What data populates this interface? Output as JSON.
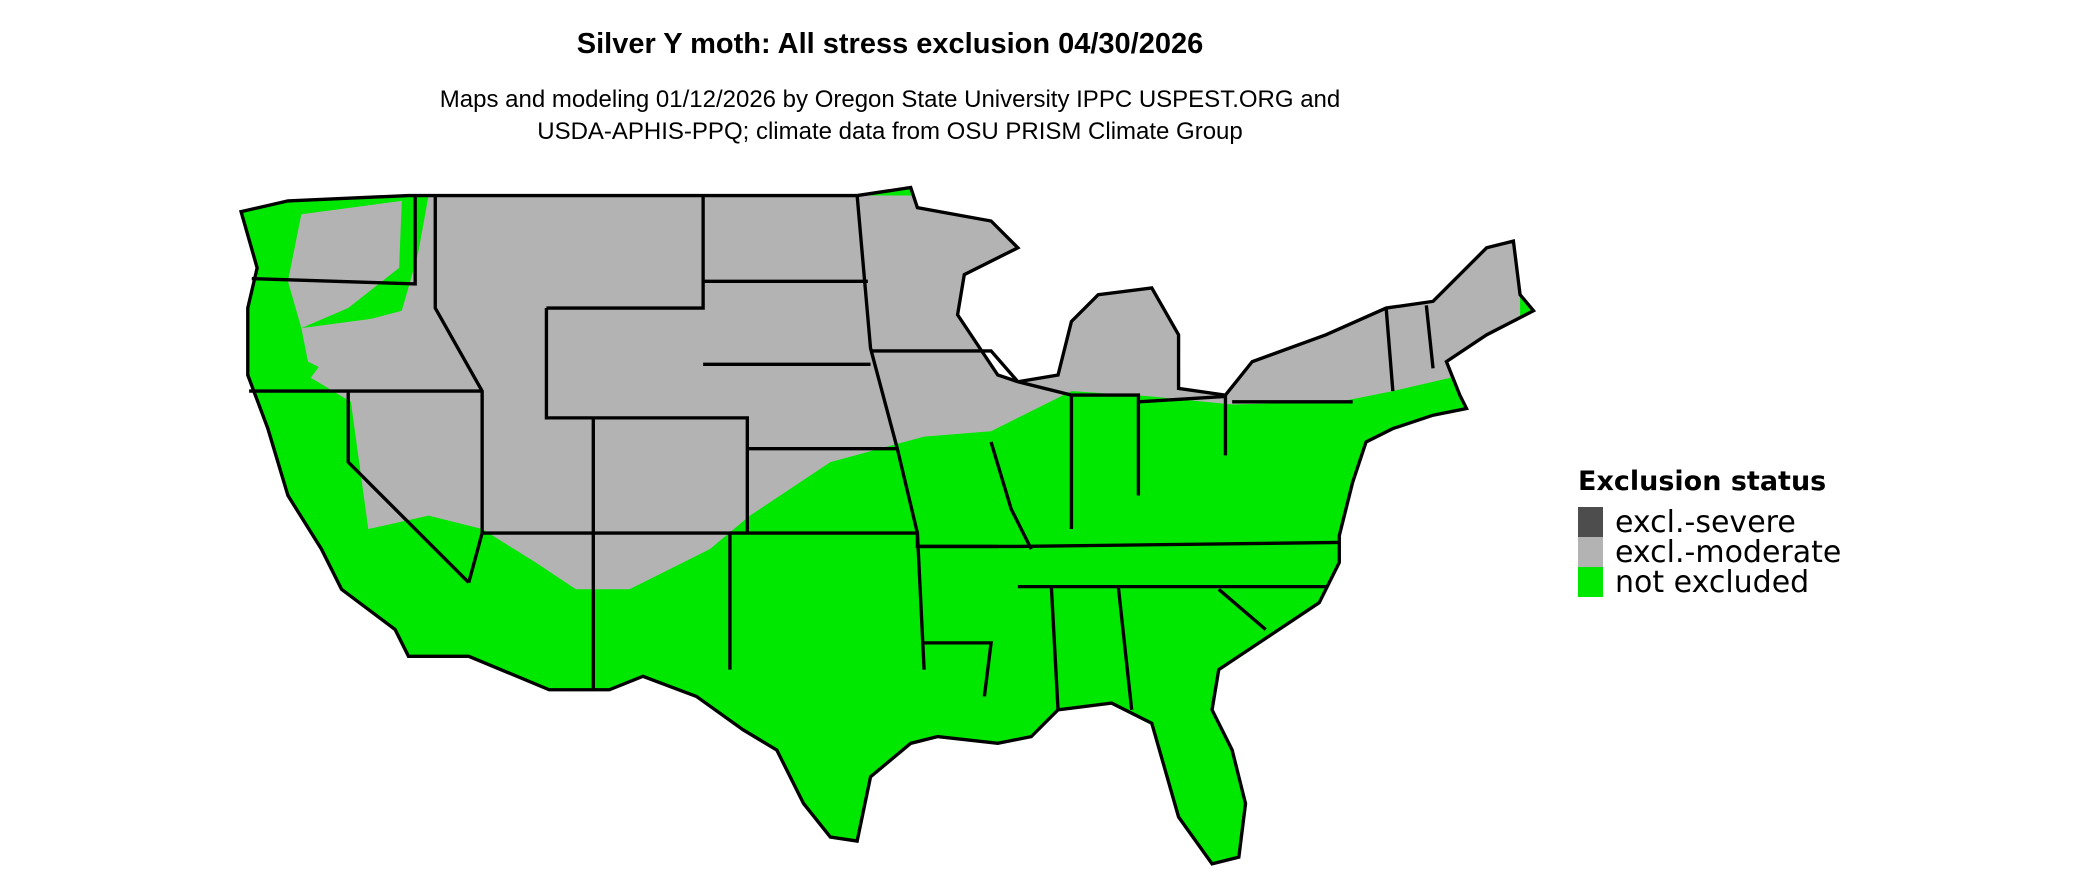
{
  "title": "Silver Y moth: All stress exclusion 04/30/2026",
  "subtitle_line1": "Maps and modeling 01/12/2026 by Oregon State University IPPC USPEST.ORG and",
  "subtitle_line2": "USDA-APHIS-PPQ; climate data from OSU PRISM Climate Group",
  "legend": {
    "title": "Exclusion status",
    "items": [
      {
        "label": "excl.-severe",
        "color": "#4d4d4d"
      },
      {
        "label": "excl.-moderate",
        "color": "#b3b3b3"
      },
      {
        "label": "not excluded",
        "color": "#00e800"
      }
    ]
  },
  "map": {
    "region": "Conterminous United States",
    "border_color": "#000000"
  }
}
